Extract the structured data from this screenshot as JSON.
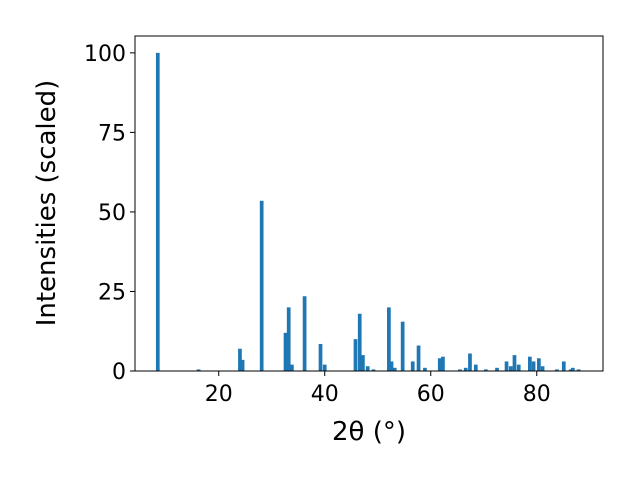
{
  "chart_data": {
    "type": "bar",
    "xlabel": "2θ (°)",
    "ylabel": "Intensities (scaled)",
    "x": [
      8.5,
      16.2,
      24.0,
      24.5,
      28.1,
      32.6,
      33.2,
      33.8,
      36.2,
      39.2,
      40.0,
      45.8,
      46.6,
      47.2,
      48.1,
      49.2,
      52.1,
      52.6,
      53.2,
      54.7,
      56.6,
      57.7,
      58.9,
      61.7,
      62.3,
      65.5,
      66.6,
      67.4,
      68.5,
      70.4,
      72.5,
      74.3,
      75.1,
      75.8,
      76.6,
      78.7,
      79.4,
      80.4,
      81.1,
      83.8,
      85.1,
      86.4,
      86.8,
      87.9
    ],
    "values": [
      100,
      0.5,
      7,
      3.5,
      53.5,
      12,
      20,
      2,
      23.5,
      8.5,
      2,
      10,
      18,
      5,
      1.5,
      0.5,
      20,
      3,
      1,
      15.5,
      3,
      8,
      1,
      4,
      4.5,
      0.5,
      1,
      5.5,
      2,
      0.5,
      1,
      3,
      1.5,
      5,
      2,
      4.5,
      3,
      4,
      1.5,
      0.5,
      3,
      0.5,
      1,
      0.5
    ],
    "color": "#1f77b4",
    "xlim": [
      4.2,
      92.5
    ],
    "ylim": [
      0,
      105.3
    ],
    "xticks": [
      20,
      40,
      60,
      80
    ],
    "yticks": [
      0,
      25,
      50,
      75,
      100
    ]
  }
}
